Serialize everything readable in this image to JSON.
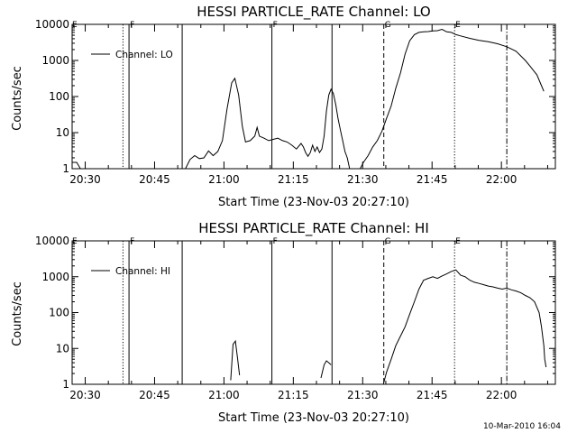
{
  "footer": {
    "timestamp": "10-Mar-2010 16:04"
  },
  "chart_data": [
    {
      "type": "line",
      "title": "HESSI PARTICLE_RATE Channel: LO",
      "xlabel": "Start Time (23-Nov-03 20:27:10)",
      "ylabel": "Counts/sec",
      "x_unit": "minutes after 20:27:10",
      "xlim": [
        0,
        104.5
      ],
      "ylim": [
        1,
        10000
      ],
      "yscale": "log",
      "grid": false,
      "legend_position": "top-left",
      "x_ticks": [
        "20:30",
        "20:45",
        "21:00",
        "21:15",
        "21:30",
        "21:45",
        "22:00"
      ],
      "y_ticks": [
        "1",
        "10",
        "100",
        "1000",
        "10000"
      ],
      "series": [
        {
          "name": "Channel: LO",
          "segments": [
            [
              [
                0,
                1.5
              ],
              [
                1,
                1.5
              ],
              [
                1.8,
                1
              ],
              [
                2.8,
                1
              ]
            ],
            [
              [
                24.5,
                1
              ],
              [
                25.5,
                1.8
              ],
              [
                26.5,
                2.3
              ],
              [
                27.5,
                1.9
              ],
              [
                28.5,
                2.0
              ],
              [
                29.5,
                3.1
              ],
              [
                30.5,
                2.3
              ],
              [
                31.5,
                3
              ],
              [
                32.5,
                6
              ],
              [
                33.5,
                45
              ],
              [
                34.5,
                240
              ],
              [
                35.2,
                320
              ],
              [
                36,
                110
              ],
              [
                36.8,
                15
              ],
              [
                37.5,
                5.5
              ],
              [
                38.5,
                6
              ],
              [
                39.5,
                8
              ],
              [
                40,
                14
              ],
              [
                40.5,
                8
              ],
              [
                41.5,
                7
              ],
              [
                42.5,
                6
              ],
              [
                43.5,
                6.5
              ],
              [
                44.5,
                7
              ],
              [
                45.5,
                6
              ],
              [
                46.5,
                5.5
              ],
              [
                47.5,
                4.5
              ],
              [
                48.5,
                3.5
              ],
              [
                49.5,
                5
              ],
              [
                50,
                4
              ],
              [
                50.5,
                2.8
              ],
              [
                51,
                2.2
              ],
              [
                51.5,
                2.8
              ],
              [
                52,
                4.5
              ],
              [
                52.5,
                3
              ],
              [
                53,
                4
              ],
              [
                53.5,
                2.8
              ],
              [
                54,
                3.5
              ],
              [
                54.5,
                8
              ],
              [
                55,
                40
              ],
              [
                55.5,
                110
              ],
              [
                56,
                160
              ],
              [
                56.5,
                120
              ],
              [
                57,
                60
              ],
              [
                57.5,
                25
              ],
              [
                58,
                12
              ],
              [
                58.5,
                6
              ],
              [
                59,
                3
              ],
              [
                59.5,
                2
              ],
              [
                60,
                1
              ]
            ],
            [
              [
                62.3,
                1
              ],
              [
                63,
                1.5
              ],
              [
                64,
                2.3
              ],
              [
                65,
                4
              ],
              [
                66,
                6
              ],
              [
                67,
                11
              ],
              [
                68,
                25
              ],
              [
                69,
                55
              ],
              [
                70,
                170
              ],
              [
                71,
                450
              ],
              [
                72,
                1500
              ],
              [
                73,
                3500
              ],
              [
                74,
                5200
              ],
              [
                75,
                6000
              ],
              [
                76,
                6200
              ],
              [
                77,
                6300
              ],
              [
                78,
                6600
              ],
              [
                79,
                6700
              ],
              [
                80,
                7300
              ],
              [
                81,
                6200
              ],
              [
                82,
                6000
              ],
              [
                83,
                5200
              ],
              [
                84,
                4800
              ],
              [
                86,
                4100
              ],
              [
                88,
                3600
              ],
              [
                90,
                3300
              ],
              [
                92,
                2900
              ],
              [
                94,
                2400
              ],
              [
                96,
                1800
              ],
              [
                98,
                1000
              ],
              [
                99,
                700
              ],
              [
                100.5,
                400
              ],
              [
                101.5,
                200
              ],
              [
                102,
                140
              ]
            ]
          ]
        }
      ],
      "vertical_lines": [
        {
          "x": 11,
          "style": "dotted",
          "label": ""
        },
        {
          "x": 12.3,
          "style": "solid",
          "label": "F"
        },
        {
          "x": 23.8,
          "style": "solid",
          "label": ""
        },
        {
          "x": 43.2,
          "style": "solid",
          "label": "F"
        },
        {
          "x": 56.2,
          "style": "solid",
          "label": ""
        },
        {
          "x": 67.4,
          "style": "dashed",
          "label": "G"
        },
        {
          "x": 82.7,
          "style": "dotted",
          "label": "E"
        },
        {
          "x": 94,
          "style": "dashdot",
          "label": ""
        }
      ],
      "left_annotation": "E"
    },
    {
      "type": "line",
      "title": "HESSI PARTICLE_RATE Channel: HI",
      "xlabel": "Start Time (23-Nov-03 20:27:10)",
      "ylabel": "Counts/sec",
      "x_unit": "minutes after 20:27:10",
      "xlim": [
        0,
        104.5
      ],
      "ylim": [
        1,
        10000
      ],
      "yscale": "log",
      "grid": false,
      "legend_position": "top-left",
      "x_ticks": [
        "20:30",
        "20:45",
        "21:00",
        "21:15",
        "21:30",
        "21:45",
        "22:00"
      ],
      "y_ticks": [
        "1",
        "10",
        "100",
        "1000",
        "10000"
      ],
      "series": [
        {
          "name": "Channel: HI",
          "segments": [
            [
              [
                34.3,
                1.3
              ],
              [
                34.8,
                13
              ],
              [
                35.3,
                16
              ],
              [
                35.8,
                5
              ],
              [
                36.2,
                1.8
              ]
            ],
            [
              [
                53.8,
                1.5
              ],
              [
                54.5,
                3.5
              ],
              [
                55,
                4.5
              ],
              [
                55.5,
                4
              ],
              [
                56,
                3.5
              ]
            ],
            [
              [
                67.3,
                1
              ],
              [
                68,
                2.2
              ],
              [
                69,
                5
              ],
              [
                70,
                12
              ],
              [
                71,
                22
              ],
              [
                72,
                40
              ],
              [
                73,
                90
              ],
              [
                74,
                200
              ],
              [
                75,
                450
              ],
              [
                76,
                800
              ],
              [
                77,
                900
              ],
              [
                78,
                1000
              ],
              [
                79,
                900
              ],
              [
                80,
                1050
              ],
              [
                81,
                1200
              ],
              [
                82,
                1400
              ],
              [
                83,
                1550
              ],
              [
                84,
                1100
              ],
              [
                85,
                1000
              ],
              [
                86,
                800
              ],
              [
                87,
                700
              ],
              [
                88,
                650
              ],
              [
                89,
                600
              ],
              [
                90,
                550
              ],
              [
                91,
                520
              ],
              [
                92,
                480
              ],
              [
                93,
                450
              ],
              [
                94,
                480
              ],
              [
                95,
                430
              ],
              [
                96,
                400
              ],
              [
                97,
                360
              ],
              [
                98,
                300
              ],
              [
                99,
                260
              ],
              [
                100,
                200
              ],
              [
                101,
                100
              ],
              [
                101.5,
                40
              ],
              [
                102,
                12
              ],
              [
                102.2,
                5
              ],
              [
                102.5,
                3
              ]
            ]
          ]
        }
      ],
      "vertical_lines": [
        {
          "x": 11,
          "style": "dotted",
          "label": ""
        },
        {
          "x": 12.3,
          "style": "solid",
          "label": "F"
        },
        {
          "x": 23.8,
          "style": "solid",
          "label": ""
        },
        {
          "x": 43.2,
          "style": "solid",
          "label": "F"
        },
        {
          "x": 56.2,
          "style": "solid",
          "label": ""
        },
        {
          "x": 67.4,
          "style": "dashed",
          "label": "G"
        },
        {
          "x": 82.7,
          "style": "dotted",
          "label": "E"
        },
        {
          "x": 94,
          "style": "dashdot",
          "label": ""
        }
      ],
      "left_annotation": "E"
    }
  ]
}
